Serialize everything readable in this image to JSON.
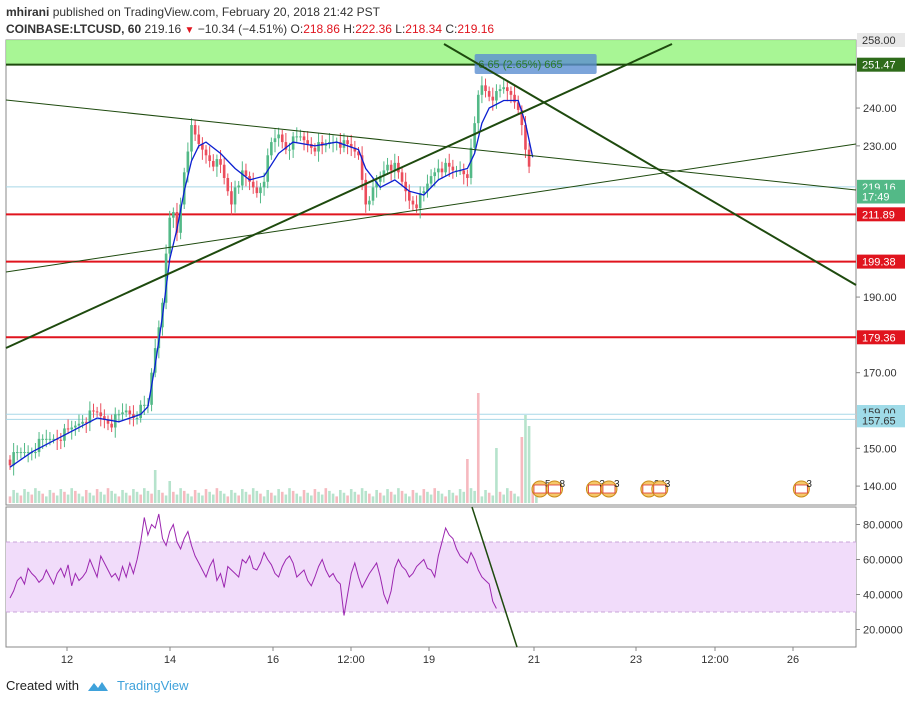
{
  "header": {
    "author": "mhirani",
    "published_text": "published on TradingView.com, February 20, 2018 21:42 PST",
    "symbol": "COINBASE:LTCUSD, 60",
    "last": "219.16",
    "change_arrow": "▼",
    "change": "−10.34 (−4.51%)",
    "o_label": "O:",
    "o_val": "218.86",
    "h_label": "H:",
    "h_val": "222.36",
    "l_label": "L:",
    "l_val": "218.34",
    "c_label": "C:",
    "c_val": "219.16"
  },
  "footer": {
    "created_with": "Created with",
    "brand": "TradingView"
  },
  "colors": {
    "up": "#53b987",
    "down": "#eb4d5c",
    "ma": "#0b1fd1",
    "trend": "#1e4a0e",
    "resistance": "#e0141e",
    "zone": "#9ef58a",
    "rsi": "#9c27b0",
    "rsi_band": "#f1dcfa"
  },
  "chart_data": {
    "type": "candlestick",
    "title": "COINBASE:LTCUSD, 60",
    "price_axis": {
      "ticks": [
        140,
        150,
        160,
        170,
        180,
        190,
        200,
        210,
        220,
        230,
        240,
        250
      ],
      "tick_labels": [
        "140.00",
        "150.00",
        "",
        "170.00",
        "",
        "190.00",
        "",
        "",
        "",
        "230.00",
        "240.00",
        ""
      ],
      "range": [
        135,
        258
      ]
    },
    "price_tags": [
      {
        "label": "258.00",
        "kind": "grey"
      },
      {
        "label": "251.47",
        "kind": "green"
      },
      {
        "label": "219.16",
        "kind": "last"
      },
      {
        "label": "17:49",
        "kind": "last"
      },
      {
        "label": "211.89",
        "kind": "red"
      },
      {
        "label": "199.38",
        "kind": "red"
      },
      {
        "label": "179.36",
        "kind": "red"
      },
      {
        "label": "159.00",
        "kind": "light"
      },
      {
        "label": "157.65",
        "kind": "light"
      }
    ],
    "horizontal_levels": [
      {
        "price": 211.89,
        "color": "red"
      },
      {
        "price": 199.38,
        "color": "red"
      },
      {
        "price": 179.36,
        "color": "red"
      },
      {
        "price": 251.47,
        "color": "green"
      }
    ],
    "zone": {
      "from": 251.47,
      "to": 258.0,
      "label": "6.65 (2.65%) 665"
    },
    "x_axis": {
      "labels": [
        "12",
        "14",
        "16",
        "12:00",
        "19",
        "21",
        "23",
        "12:00",
        "26"
      ]
    },
    "close_path": [
      [
        0,
        147
      ],
      [
        4,
        149
      ],
      [
        8,
        151
      ],
      [
        12,
        153
      ],
      [
        16,
        154
      ],
      [
        18,
        156
      ],
      [
        20,
        158
      ],
      [
        24,
        159
      ],
      [
        26,
        158
      ],
      [
        28,
        157
      ],
      [
        30,
        158
      ],
      [
        32,
        160
      ],
      [
        34,
        159
      ],
      [
        36,
        160
      ],
      [
        38,
        161
      ],
      [
        39,
        170
      ],
      [
        40,
        177
      ],
      [
        41,
        183
      ],
      [
        42,
        190
      ],
      [
        43,
        200
      ],
      [
        44,
        210
      ],
      [
        45,
        212
      ],
      [
        46,
        207
      ],
      [
        47,
        215
      ],
      [
        48,
        224
      ],
      [
        49,
        230
      ],
      [
        50,
        234
      ],
      [
        52,
        230
      ],
      [
        54,
        228
      ],
      [
        56,
        226
      ],
      [
        58,
        224
      ],
      [
        60,
        218
      ],
      [
        61,
        215
      ],
      [
        62,
        220
      ],
      [
        64,
        222
      ],
      [
        66,
        220
      ],
      [
        68,
        218
      ],
      [
        70,
        222
      ],
      [
        72,
        230
      ],
      [
        74,
        233
      ],
      [
        76,
        230
      ],
      [
        78,
        231
      ],
      [
        80,
        232
      ],
      [
        82,
        231
      ],
      [
        84,
        230
      ],
      [
        86,
        229
      ],
      [
        88,
        231
      ],
      [
        90,
        232
      ],
      [
        92,
        230
      ],
      [
        94,
        229
      ],
      [
        96,
        228
      ],
      [
        97,
        222
      ],
      [
        98,
        216
      ],
      [
        99,
        214
      ],
      [
        100,
        218
      ],
      [
        102,
        222
      ],
      [
        104,
        226
      ],
      [
        106,
        224
      ],
      [
        108,
        220
      ],
      [
        110,
        216
      ],
      [
        112,
        215
      ],
      [
        114,
        217
      ],
      [
        116,
        222
      ],
      [
        118,
        225
      ],
      [
        120,
        224
      ],
      [
        122,
        223
      ],
      [
        124,
        224
      ],
      [
        126,
        223
      ],
      [
        127,
        228
      ],
      [
        128,
        235
      ],
      [
        129,
        243
      ],
      [
        130,
        246
      ],
      [
        132,
        244
      ],
      [
        134,
        243
      ],
      [
        136,
        245
      ],
      [
        138,
        244
      ],
      [
        140,
        241
      ],
      [
        141,
        234
      ],
      [
        142,
        228
      ],
      [
        143,
        224
      ],
      [
        144,
        219
      ]
    ],
    "ma_path": [
      [
        0,
        145
      ],
      [
        6,
        149
      ],
      [
        12,
        152
      ],
      [
        18,
        155
      ],
      [
        24,
        158
      ],
      [
        30,
        157
      ],
      [
        36,
        159
      ],
      [
        38,
        161
      ],
      [
        40,
        172
      ],
      [
        42,
        185
      ],
      [
        44,
        200
      ],
      [
        46,
        208
      ],
      [
        48,
        218
      ],
      [
        50,
        226
      ],
      [
        52,
        230
      ],
      [
        54,
        231
      ],
      [
        58,
        228
      ],
      [
        62,
        224
      ],
      [
        66,
        221
      ],
      [
        70,
        222
      ],
      [
        74,
        228
      ],
      [
        78,
        231
      ],
      [
        84,
        230
      ],
      [
        90,
        231
      ],
      [
        96,
        229
      ],
      [
        98,
        224
      ],
      [
        102,
        219
      ],
      [
        106,
        221
      ],
      [
        110,
        218
      ],
      [
        114,
        217
      ],
      [
        118,
        221
      ],
      [
        122,
        223
      ],
      [
        126,
        224
      ],
      [
        128,
        228
      ],
      [
        130,
        236
      ],
      [
        132,
        240
      ],
      [
        136,
        242
      ],
      [
        140,
        242
      ],
      [
        142,
        236
      ],
      [
        144,
        227
      ]
    ],
    "volume_spikes": [
      {
        "i": 40,
        "v": 3
      },
      {
        "i": 44,
        "v": 2
      },
      {
        "i": 126,
        "v": 4
      },
      {
        "i": 129,
        "v": 10
      },
      {
        "i": 134,
        "v": 5
      },
      {
        "i": 141,
        "v": 6
      },
      {
        "i": 142,
        "v": 8
      },
      {
        "i": 143,
        "v": 7
      }
    ],
    "event_markers": [
      {
        "x_index": 146,
        "label": "5"
      },
      {
        "x_index": 150,
        "label": "8"
      },
      {
        "x_index": 161,
        "label": "3"
      },
      {
        "x_index": 165,
        "label": "3"
      },
      {
        "x_index": 176,
        "label": "24"
      },
      {
        "x_index": 179,
        "label": "3"
      },
      {
        "x_index": 218,
        "label": "3"
      }
    ],
    "rsi": {
      "axis_ticks": [
        "20.0000",
        "40.0000",
        "60.0000",
        "80.0000"
      ],
      "range": [
        10,
        90
      ],
      "band": [
        30,
        70
      ],
      "values": [
        38,
        42,
        48,
        50,
        46,
        55,
        52,
        50,
        47,
        49,
        54,
        50,
        46,
        52,
        55,
        50,
        57,
        45,
        52,
        48,
        50,
        53,
        60,
        55,
        50,
        62,
        58,
        54,
        50,
        52,
        48,
        56,
        50,
        58,
        52,
        60,
        70,
        84,
        74,
        80,
        78,
        86,
        72,
        68,
        76,
        80,
        70,
        66,
        72,
        76,
        68,
        62,
        58,
        54,
        50,
        56,
        60,
        48,
        52,
        44,
        56,
        54,
        52,
        50,
        60,
        58,
        62,
        55,
        54,
        58,
        64,
        60,
        57,
        52,
        50,
        56,
        60,
        62,
        58,
        50,
        52,
        54,
        48,
        45,
        50,
        56,
        60,
        54,
        50,
        52,
        48,
        46,
        28,
        40,
        52,
        58,
        50,
        44,
        48,
        52,
        55,
        58,
        50,
        40,
        35,
        42,
        55,
        60,
        56,
        54,
        50,
        52,
        56,
        58,
        60,
        55,
        54,
        50,
        62,
        70,
        78,
        74,
        72,
        66,
        62,
        60,
        58,
        64,
        60,
        54,
        50,
        48,
        46,
        36,
        32
      ]
    }
  }
}
